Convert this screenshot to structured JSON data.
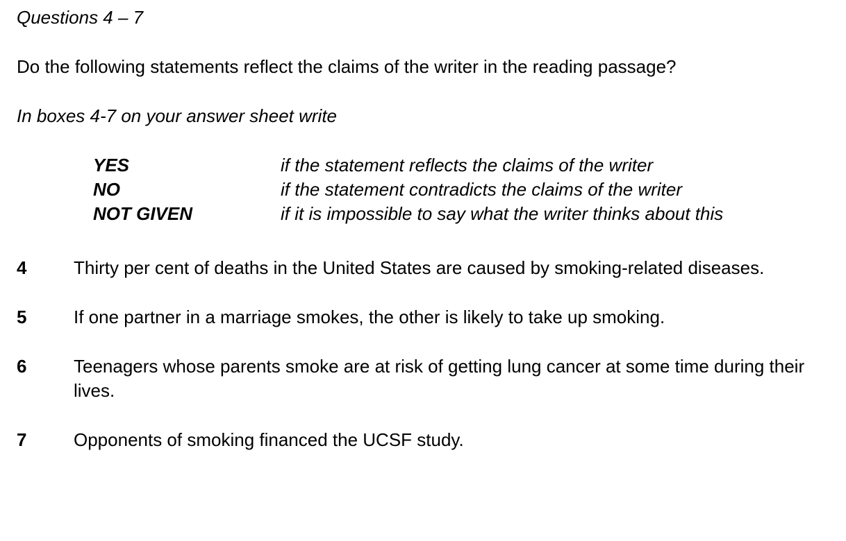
{
  "heading": "Questions 4 – 7",
  "intro": "Do the following statements reflect the claims of the writer in the reading passage?",
  "instruction": "In boxes 4-7 on your answer sheet write",
  "legend": [
    {
      "key": "YES",
      "desc": "if the statement reflects the claims of the writer"
    },
    {
      "key": "NO",
      "desc": "if the statement contradicts the claims of the writer"
    },
    {
      "key": "NOT GIVEN",
      "desc": "if it is impossible to say what the writer thinks about this"
    }
  ],
  "questions": [
    {
      "num": "4",
      "text": "Thirty per cent of deaths in the United States are caused by smoking-related diseases."
    },
    {
      "num": "5",
      "text": "If one partner in a marriage smokes, the other is likely to take up smoking."
    },
    {
      "num": "6",
      "text": "Teenagers whose parents smoke are at risk of getting lung cancer at some time during their lives."
    },
    {
      "num": "7",
      "text": "Opponents of smoking financed the UCSF study."
    }
  ]
}
